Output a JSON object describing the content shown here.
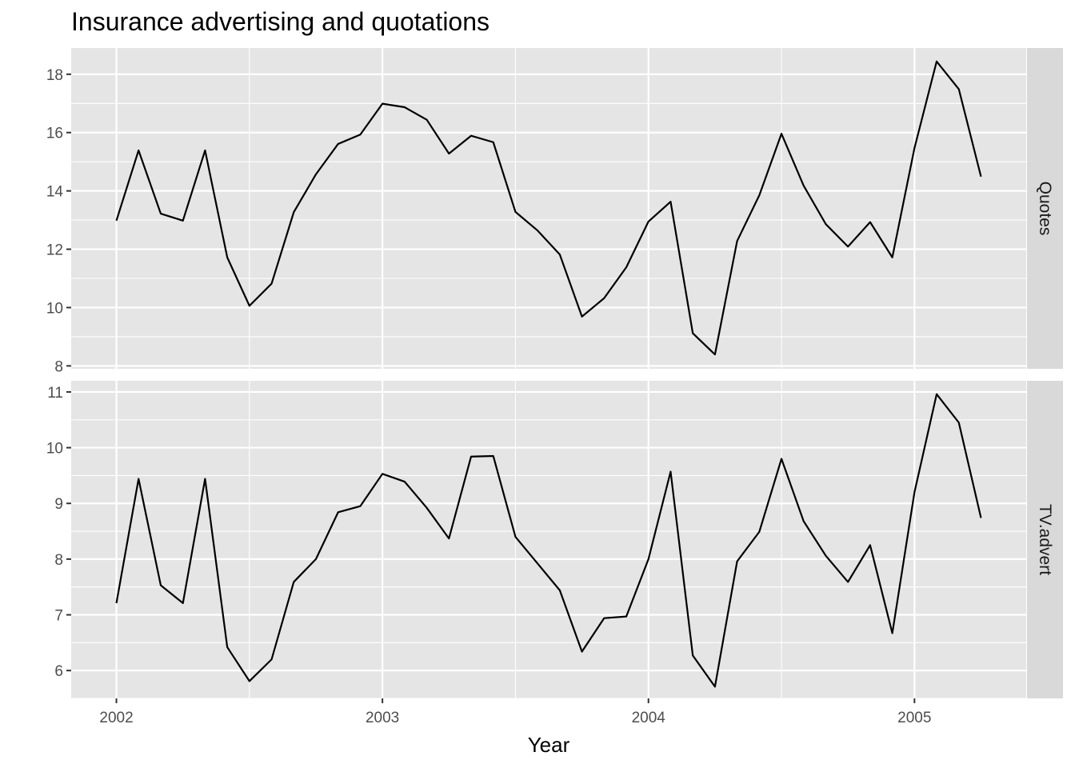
{
  "chart_data": {
    "type": "line",
    "title": "Insurance advertising and quotations",
    "xlabel": "Year",
    "ylabel": "",
    "x": [
      2002.0,
      2002.0833,
      2002.1667,
      2002.25,
      2002.3333,
      2002.4167,
      2002.5,
      2002.5833,
      2002.6667,
      2002.75,
      2002.8333,
      2002.9167,
      2003.0,
      2003.0833,
      2003.1667,
      2003.25,
      2003.3333,
      2003.4167,
      2003.5,
      2003.5833,
      2003.6667,
      2003.75,
      2003.8333,
      2003.9167,
      2004.0,
      2004.0833,
      2004.1667,
      2004.25,
      2004.3333,
      2004.4167,
      2004.5,
      2004.5833,
      2004.6667,
      2004.75,
      2004.8333,
      2004.9167,
      2005.0,
      2005.0833,
      2005.1667,
      2005.25
    ],
    "xlim": [
      2001.83,
      2005.42
    ],
    "x_ticks": [
      "2002",
      "2003",
      "2004",
      "2005"
    ],
    "grid": true,
    "facet_direction": "rows",
    "panel_background": "#e5e5e5",
    "strip_background": "#d9d9d9",
    "line_color": "#000000",
    "panels": [
      {
        "name": "Quotes",
        "ylim": [
          7.9,
          18.9
        ],
        "y_ticks": [
          "8",
          "10",
          "12",
          "14",
          "16",
          "18"
        ],
        "values": [
          12.98,
          15.39,
          13.22,
          12.98,
          15.39,
          11.72,
          10.06,
          10.82,
          13.27,
          14.57,
          15.61,
          15.93,
          16.99,
          16.87,
          16.44,
          15.28,
          15.89,
          15.67,
          13.28,
          12.64,
          11.82,
          9.69,
          10.32,
          11.38,
          12.95,
          13.63,
          9.12,
          8.39,
          12.28,
          13.85,
          15.96,
          14.18,
          12.86,
          12.09,
          12.93,
          11.72,
          15.47,
          18.44,
          17.49,
          14.49
        ]
      },
      {
        "name": "TV.advert",
        "ylim": [
          5.5,
          11.2
        ],
        "y_ticks": [
          "6",
          "7",
          "8",
          "9",
          "10",
          "11"
        ],
        "values": [
          7.21,
          9.44,
          7.53,
          7.21,
          9.44,
          6.42,
          5.81,
          6.2,
          7.59,
          8.0,
          8.84,
          8.95,
          9.53,
          9.39,
          8.92,
          8.37,
          9.84,
          9.85,
          8.4,
          7.92,
          7.44,
          6.34,
          6.94,
          6.97,
          8.0,
          9.57,
          6.27,
          5.71,
          7.96,
          8.49,
          9.8,
          8.68,
          8.06,
          7.59,
          8.25,
          6.67,
          9.2,
          10.96,
          10.45,
          8.74
        ]
      }
    ]
  }
}
